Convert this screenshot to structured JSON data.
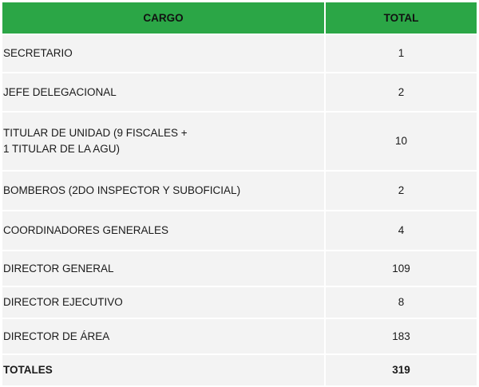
{
  "table": {
    "headers": {
      "cargo": "CARGO",
      "total": "TOTAL"
    },
    "rows": [
      {
        "cargo": "SECRETARIO",
        "total": "1"
      },
      {
        "cargo": "JEFE DELEGACIONAL",
        "total": "2"
      },
      {
        "cargo": "TITULAR DE UNIDAD (9 FISCALES +",
        "cargo_line2": "1 TITULAR DE LA AGU)",
        "total": "10"
      },
      {
        "cargo": "BOMBEROS (2DO INSPECTOR Y SUBOFICIAL)",
        "total": "2"
      },
      {
        "cargo": "COORDINADORES GENERALES",
        "total": "4"
      },
      {
        "cargo": "DIRECTOR GENERAL",
        "total": "109"
      },
      {
        "cargo": "DIRECTOR EJECUTIVO",
        "total": "8"
      },
      {
        "cargo": "DIRECTOR DE ÁREA",
        "total": "183"
      }
    ],
    "totals": {
      "label": "TOTALES",
      "value": "319"
    }
  },
  "colors": {
    "header_bg": "#2ba646",
    "row_bg": "#f3f3f3"
  }
}
